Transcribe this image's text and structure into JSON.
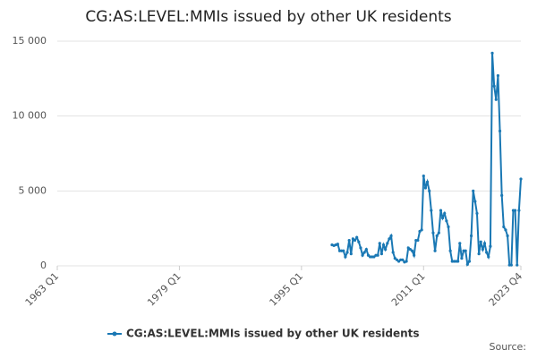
{
  "chart_data": {
    "type": "line",
    "title": "CG:AS:LEVEL:MMIs issued by other UK residents",
    "source": "Source:",
    "x": [
      "1999 Q1",
      "1999 Q2",
      "1999 Q3",
      "1999 Q4",
      "2000 Q1",
      "2000 Q2",
      "2000 Q3",
      "2000 Q4",
      "2001 Q1",
      "2001 Q2",
      "2001 Q3",
      "2001 Q4",
      "2002 Q1",
      "2002 Q2",
      "2002 Q3",
      "2002 Q4",
      "2003 Q1",
      "2003 Q2",
      "2003 Q3",
      "2003 Q4",
      "2004 Q1",
      "2004 Q2",
      "2004 Q3",
      "2004 Q4",
      "2005 Q1",
      "2005 Q2",
      "2005 Q3",
      "2005 Q4",
      "2006 Q1",
      "2006 Q2",
      "2006 Q3",
      "2006 Q4",
      "2007 Q1",
      "2007 Q2",
      "2007 Q3",
      "2007 Q4",
      "2008 Q1",
      "2008 Q2",
      "2008 Q3",
      "2008 Q4",
      "2009 Q1",
      "2009 Q2",
      "2009 Q3",
      "2009 Q4",
      "2010 Q1",
      "2010 Q2",
      "2010 Q3",
      "2010 Q4",
      "2011 Q1",
      "2011 Q2",
      "2011 Q3",
      "2011 Q4",
      "2012 Q1",
      "2012 Q2",
      "2012 Q3",
      "2012 Q4",
      "2013 Q1",
      "2013 Q2",
      "2013 Q3",
      "2013 Q4",
      "2014 Q1",
      "2014 Q2",
      "2014 Q3",
      "2014 Q4",
      "2015 Q1",
      "2015 Q2",
      "2015 Q3",
      "2015 Q4",
      "2016 Q1",
      "2016 Q2",
      "2016 Q3",
      "2016 Q4",
      "2017 Q1",
      "2017 Q2",
      "2017 Q3",
      "2017 Q4",
      "2018 Q1",
      "2018 Q2",
      "2018 Q3",
      "2018 Q4",
      "2019 Q1",
      "2019 Q2",
      "2019 Q3",
      "2019 Q4",
      "2020 Q1",
      "2020 Q2",
      "2020 Q3",
      "2020 Q4",
      "2021 Q1",
      "2021 Q2",
      "2021 Q3",
      "2021 Q4",
      "2022 Q1",
      "2022 Q2",
      "2022 Q3",
      "2022 Q4",
      "2023 Q1",
      "2023 Q2",
      "2023 Q3",
      "2023 Q4"
    ],
    "series": [
      {
        "name": "CG:AS:LEVEL:MMIs issued by other UK residents",
        "color": "#1a78b4",
        "values": [
          1400,
          1350,
          1400,
          1450,
          1000,
          1000,
          1000,
          600,
          900,
          1700,
          800,
          1800,
          1700,
          1900,
          1600,
          1200,
          700,
          900,
          1100,
          700,
          600,
          600,
          600,
          700,
          700,
          1500,
          800,
          1400,
          1100,
          1500,
          1800,
          2000,
          900,
          500,
          400,
          300,
          400,
          400,
          250,
          300,
          1200,
          1100,
          1000,
          700,
          1700,
          1700,
          2300,
          2400,
          6000,
          5200,
          5600,
          5000,
          3700,
          2200,
          1000,
          2000,
          2200,
          3700,
          3200,
          3500,
          3000,
          2600,
          1000,
          300,
          300,
          300,
          300,
          1500,
          500,
          1000,
          1000,
          100,
          300,
          2000,
          5000,
          4300,
          3500,
          800,
          1600,
          1100,
          1500,
          900,
          600,
          1300,
          14200,
          12000,
          11100,
          12700,
          9000,
          4700,
          2600,
          2400,
          2000,
          50,
          50,
          3700,
          3700,
          50,
          3700,
          5800
        ]
      }
    ],
    "xlim": [
      "1963 Q1",
      "2023 Q4"
    ],
    "xticks": [
      "1963 Q1",
      "1979 Q1",
      "1995 Q1",
      "2011 Q1",
      "2023 Q4"
    ],
    "ylim": [
      0,
      15000
    ],
    "yticks": [
      0,
      {
        "value": 5000,
        "label": "5 000"
      },
      {
        "value": 10000,
        "label": "10 000"
      },
      {
        "value": 15000,
        "label": "15 000"
      }
    ],
    "grid": true
  }
}
